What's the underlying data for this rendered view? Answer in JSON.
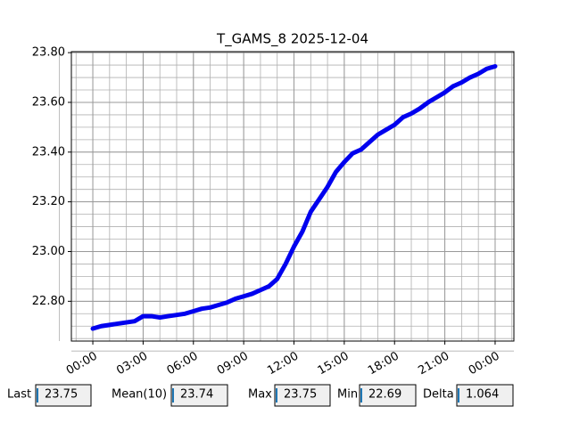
{
  "chart_data": {
    "type": "line",
    "title": "T_GAMS_8 2025-12-04",
    "x": [
      0,
      0.5,
      1,
      1.5,
      2,
      2.5,
      3,
      3.5,
      4,
      4.5,
      5,
      5.5,
      6,
      6.5,
      7,
      7.5,
      8,
      8.5,
      9,
      9.5,
      10,
      10.5,
      11,
      11.5,
      12,
      12.5,
      13,
      13.5,
      14,
      14.5,
      15,
      15.5,
      16,
      16.5,
      17,
      17.5,
      18,
      18.5,
      19,
      19.5,
      20,
      20.5,
      21,
      21.5,
      22,
      22.5,
      23,
      23.5,
      24
    ],
    "series": [
      {
        "color": "#0000ee",
        "values": [
          22.69,
          22.7,
          22.705,
          22.71,
          22.715,
          22.72,
          22.74,
          22.74,
          22.735,
          22.74,
          22.745,
          22.75,
          22.76,
          22.77,
          22.775,
          22.785,
          22.795,
          22.81,
          22.82,
          22.83,
          22.845,
          22.86,
          22.89,
          22.95,
          23.02,
          23.08,
          23.16,
          23.21,
          23.26,
          23.32,
          23.36,
          23.395,
          23.41,
          23.44,
          23.47,
          23.49,
          23.51,
          23.54,
          23.555,
          23.575,
          23.6,
          23.62,
          23.64,
          23.665,
          23.68,
          23.7,
          23.715,
          23.735,
          23.745
        ]
      }
    ],
    "xlim": [
      -1.28,
      25.12
    ],
    "ylim": [
      22.64,
      23.804
    ],
    "xticks": [
      {
        "value": 0,
        "label": "00:00"
      },
      {
        "value": 3,
        "label": "03:00"
      },
      {
        "value": 6,
        "label": "06:00"
      },
      {
        "value": 9,
        "label": "09:00"
      },
      {
        "value": 12,
        "label": "12:00"
      },
      {
        "value": 15,
        "label": "15:00"
      },
      {
        "value": 18,
        "label": "18:00"
      },
      {
        "value": 21,
        "label": "21:00"
      },
      {
        "value": 24,
        "label": "00:00"
      }
    ],
    "yticks": [
      {
        "value": 22.8,
        "label": "22.80"
      },
      {
        "value": 23.0,
        "label": "23.00"
      },
      {
        "value": 23.2,
        "label": "23.20"
      },
      {
        "value": 23.4,
        "label": "23.40"
      },
      {
        "value": 23.6,
        "label": "23.60"
      },
      {
        "value": 23.8,
        "label": "23.80"
      }
    ],
    "grid": true
  },
  "stats": [
    {
      "label": "Last",
      "value": "23.75"
    },
    {
      "label": "Mean(10)",
      "value": "23.74"
    },
    {
      "label": "Max",
      "value": "23.75"
    },
    {
      "label": "Min",
      "value": "22.69"
    },
    {
      "label": "Delta",
      "value": "1.064"
    }
  ]
}
